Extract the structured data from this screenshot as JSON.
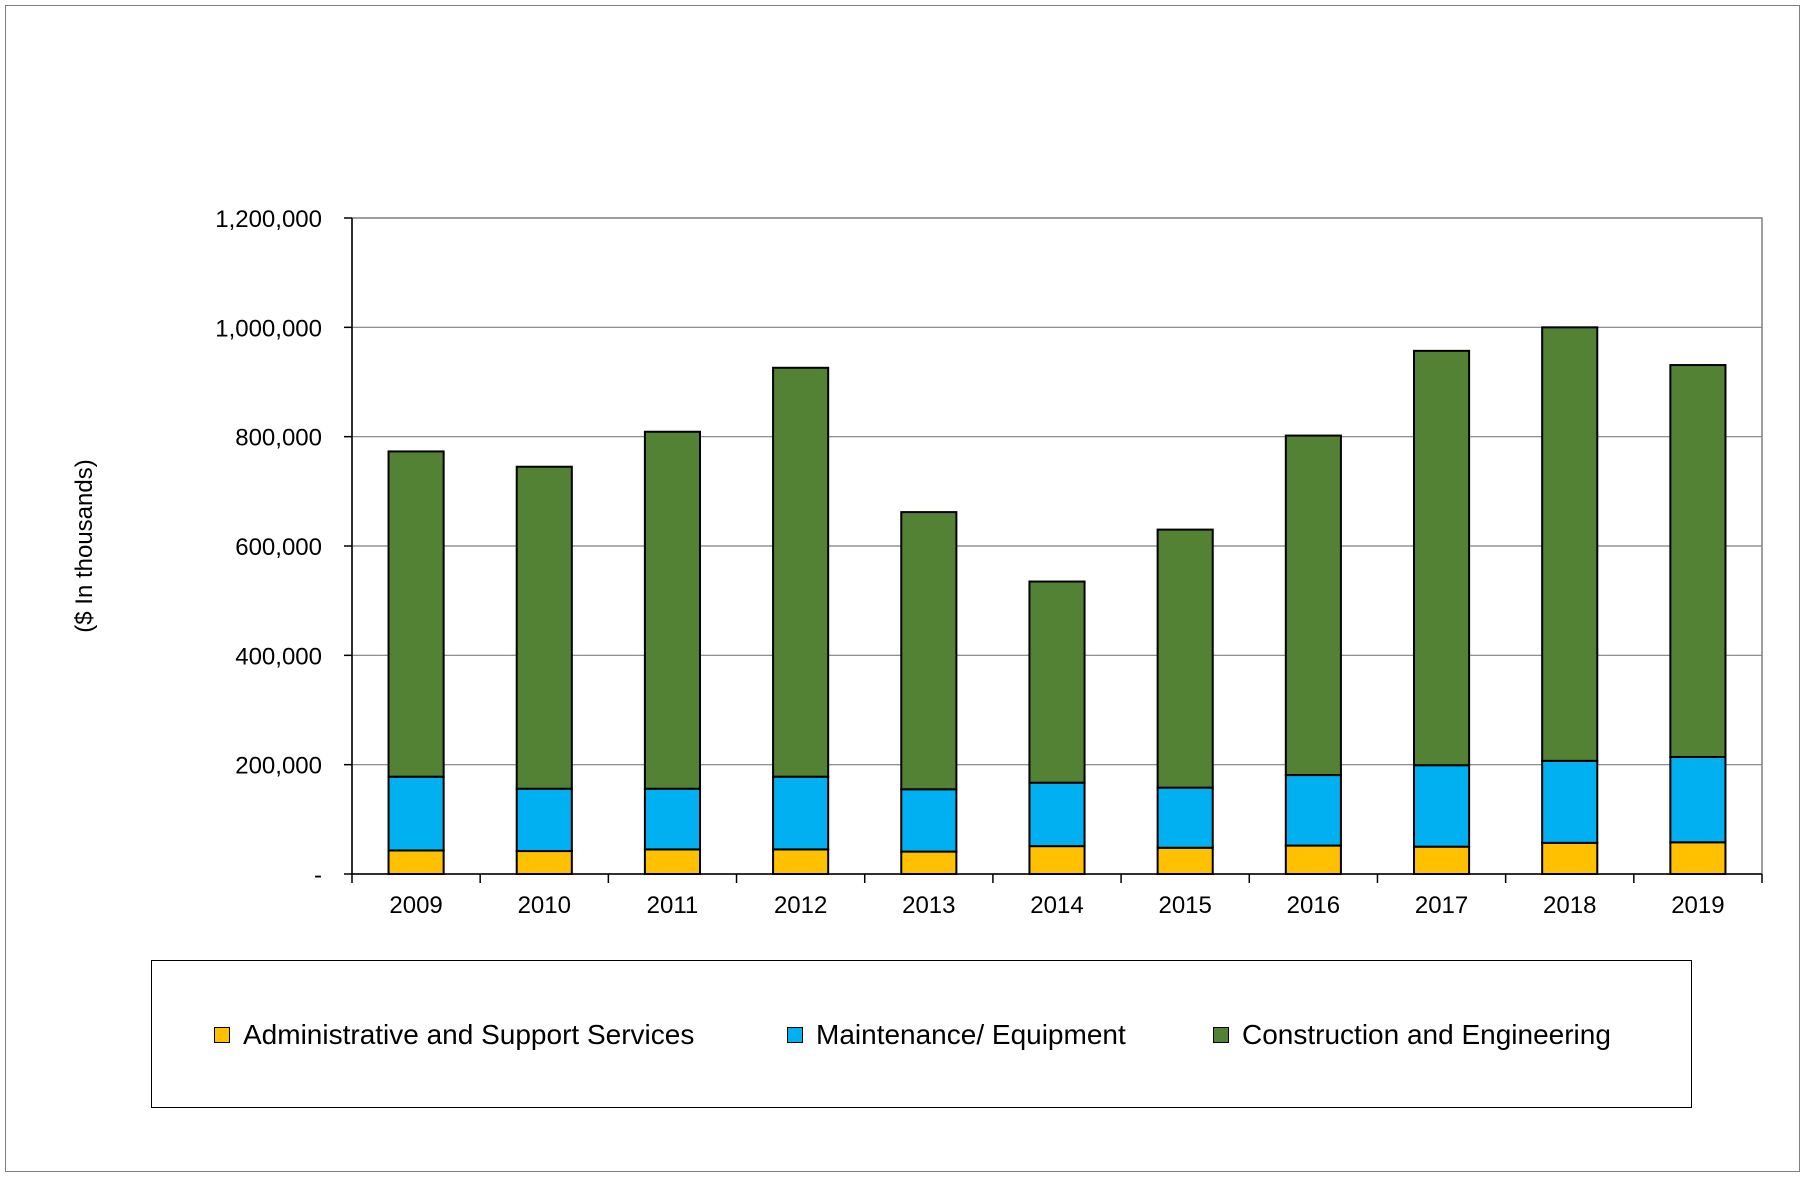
{
  "chart_data": {
    "type": "bar",
    "stacked": true,
    "title": "",
    "xlabel": "",
    "ylabel": "($ In thousands)",
    "ylim": [
      0,
      1200000
    ],
    "yticks": [
      0,
      200000,
      400000,
      600000,
      800000,
      1000000,
      1200000
    ],
    "ytick_labels": [
      "-",
      "200,000",
      "400,000",
      "600,000",
      "800,000",
      "1,000,000",
      "1,200,000"
    ],
    "grid": true,
    "legend_position": "bottom",
    "categories": [
      "2009",
      "2010",
      "2011",
      "2012",
      "2013",
      "2014",
      "2015",
      "2016",
      "2017",
      "2018",
      "2019"
    ],
    "series": [
      {
        "name": "Administrative and Support Services",
        "color": "#FFC000",
        "values": [
          43000,
          42000,
          45000,
          45000,
          41000,
          51000,
          48000,
          52000,
          50000,
          57000,
          58000
        ]
      },
      {
        "name": "Maintenance/ Equipment",
        "color": "#00B0F0",
        "values": [
          135000,
          114000,
          111000,
          133000,
          114000,
          116000,
          110000,
          129000,
          149000,
          150000,
          156000
        ]
      },
      {
        "name": "Construction and Engineering",
        "color": "#548235",
        "values": [
          595000,
          589000,
          653000,
          748000,
          507000,
          368000,
          472000,
          621000,
          758000,
          793000,
          717000
        ]
      }
    ]
  }
}
